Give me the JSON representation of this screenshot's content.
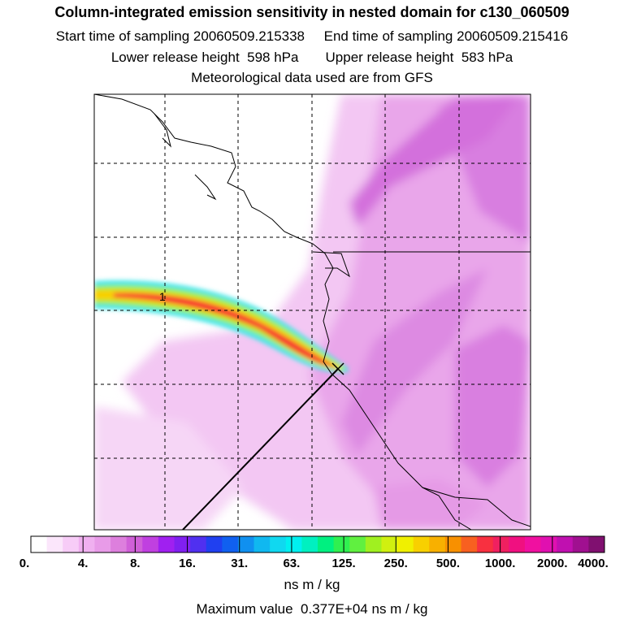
{
  "title": "Column-integrated emission sensitivity in nested domain for c130_060509",
  "sampling": {
    "start_label": "Start time of sampling",
    "start_value": "20060509.215338",
    "end_label": "End time of sampling",
    "end_value": "20060509.215416"
  },
  "release": {
    "lower_label": "Lower release height",
    "lower_value": "598 hPa",
    "upper_label": "Upper release height",
    "upper_value": "583 hPa"
  },
  "met_note": "Meteorological data used are from GFS",
  "trajectory_label": "1",
  "colorbar": {
    "tick_labels": [
      "0.",
      "4.",
      "8.",
      "16.",
      "31.",
      "63.",
      "125.",
      "250.",
      "500.",
      "1000.",
      "2000.",
      "4000."
    ],
    "colors": [
      "#ffffff",
      "#fbe6fb",
      "#f7ccf7",
      "#f0b0f0",
      "#e89be8",
      "#dd7fdd",
      "#d060d8",
      "#c040e0",
      "#a020f0",
      "#8020f0",
      "#5030f0",
      "#2040f0",
      "#1060f0",
      "#1090f0",
      "#10b8f0",
      "#10d8f0",
      "#00f0f0",
      "#00f0c0",
      "#00f080",
      "#30f050",
      "#60f040",
      "#a0f020",
      "#d0f010",
      "#f0f000",
      "#f8d000",
      "#f8b000",
      "#f89000",
      "#f86020",
      "#f83040",
      "#f02060",
      "#f01080",
      "#f010a0",
      "#e010b0",
      "#c010b0",
      "#a01090",
      "#801070"
    ],
    "units": "ns m / kg"
  },
  "max_value": {
    "label": "Maximum value",
    "value": "0.377E+04",
    "units": "ns m / kg"
  }
}
